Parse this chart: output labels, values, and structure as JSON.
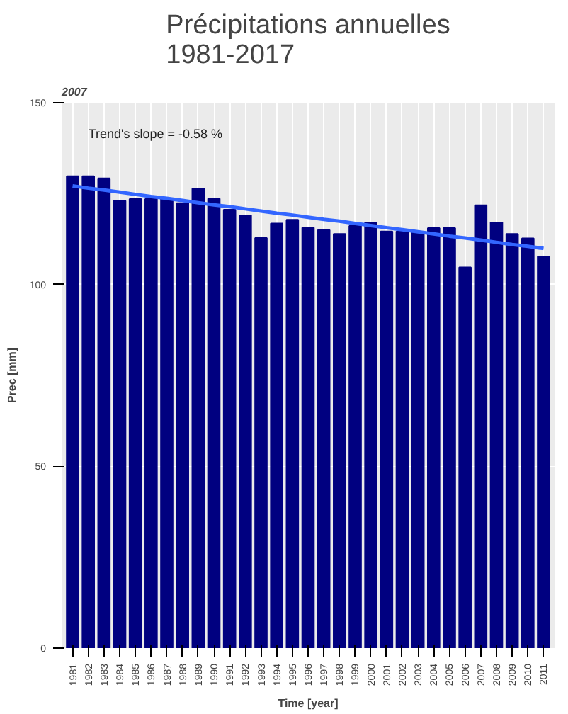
{
  "chart_data": {
    "type": "bar",
    "title": "Précipitations annuelles\n1981-2017",
    "xlabel": "Time [year]",
    "ylabel": "Prec [mm]",
    "categories": [
      "1981",
      "1982",
      "1983",
      "1984",
      "1985",
      "1986",
      "1987",
      "1988",
      "1989",
      "1990",
      "1991",
      "1992",
      "1993",
      "1994",
      "1995",
      "1996",
      "1997",
      "1998",
      "1999",
      "2000",
      "2001",
      "2002",
      "2003",
      "2004",
      "2005",
      "2006",
      "2007",
      "2008",
      "2009",
      "2010",
      "2011"
    ],
    "series": [
      {
        "color": "#000080",
        "values": [
          129.8,
          129.8,
          129.2,
          123.0,
          123.5,
          123.5,
          123.5,
          122.4,
          126.4,
          123.6,
          120.6,
          119.0,
          112.8,
          116.8,
          117.8,
          115.6,
          115.0,
          113.9,
          116.1,
          117.1,
          114.6,
          114.6,
          114.3,
          115.5,
          115.5,
          104.7,
          121.8,
          117.1,
          113.9,
          112.7,
          107.7
        ]
      },
      {
        "type": "line",
        "color": "#3366ff",
        "values": [
          127.1,
          126.5,
          126.0,
          125.4,
          124.8,
          124.2,
          123.7,
          123.1,
          122.5,
          121.9,
          121.4,
          120.8,
          120.2,
          119.6,
          119.1,
          118.5,
          117.9,
          117.4,
          116.8,
          116.2,
          115.6,
          115.1,
          114.5,
          113.9,
          113.3,
          112.8,
          112.2,
          111.6,
          111.0,
          110.5,
          109.9
        ]
      }
    ],
    "ylim": [
      0,
      150
    ],
    "yticks": [
      0,
      50,
      100,
      150
    ],
    "grid": true,
    "annotations": [
      "2007",
      "Trend's slope = -0.58 %"
    ]
  }
}
